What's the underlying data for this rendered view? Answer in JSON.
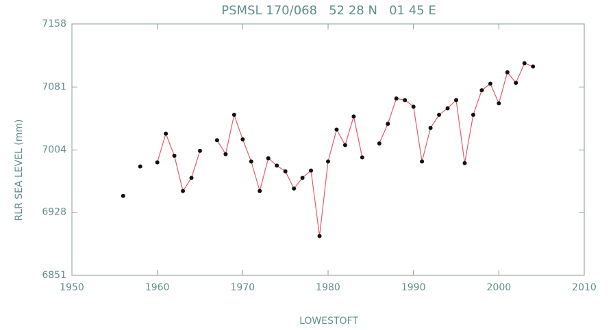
{
  "chart_data": {
    "type": "line",
    "title": "PSMSL 170/068   52 28 N   01 45 E",
    "xlabel": "LOWESTOFT",
    "ylabel": "RLR SEA LEVEL (mm)",
    "x": [
      1956,
      1957,
      1958,
      1959,
      1960,
      1961,
      1962,
      1963,
      1964,
      1965,
      1966,
      1967,
      1968,
      1969,
      1970,
      1971,
      1972,
      1973,
      1974,
      1975,
      1976,
      1977,
      1978,
      1979,
      1980,
      1981,
      1982,
      1983,
      1984,
      1985,
      1986,
      1987,
      1988,
      1989,
      1990,
      1991,
      1992,
      1993,
      1994,
      1995,
      1996,
      1997,
      1998,
      1999,
      2000,
      2001,
      2002,
      2003,
      2004
    ],
    "series": [
      {
        "name": "LOWESTOFT",
        "color": "#e05a6a",
        "marker_color": "#111111",
        "values": [
          6948,
          null,
          6984,
          null,
          6989,
          7024,
          6997,
          6954,
          6970,
          7003,
          null,
          7016,
          6999,
          7047,
          7017,
          6990,
          6954,
          6994,
          6985,
          6978,
          6957,
          6970,
          6979,
          6899,
          6990,
          7029,
          7010,
          7045,
          6995,
          null,
          7012,
          7036,
          7067,
          7065,
          7057,
          6990,
          7031,
          7047,
          7055,
          7065,
          6988,
          7047,
          7077,
          7085,
          7061,
          7099,
          7086,
          7110,
          7106
        ]
      }
    ],
    "xlim": [
      1950,
      2010
    ],
    "xticks": [
      1950,
      1960,
      1970,
      1980,
      1990,
      2000,
      2010
    ],
    "ylim": [
      6851,
      7158
    ],
    "yticks": [
      6851,
      6928,
      7004,
      7081,
      7158
    ],
    "grid": false
  }
}
